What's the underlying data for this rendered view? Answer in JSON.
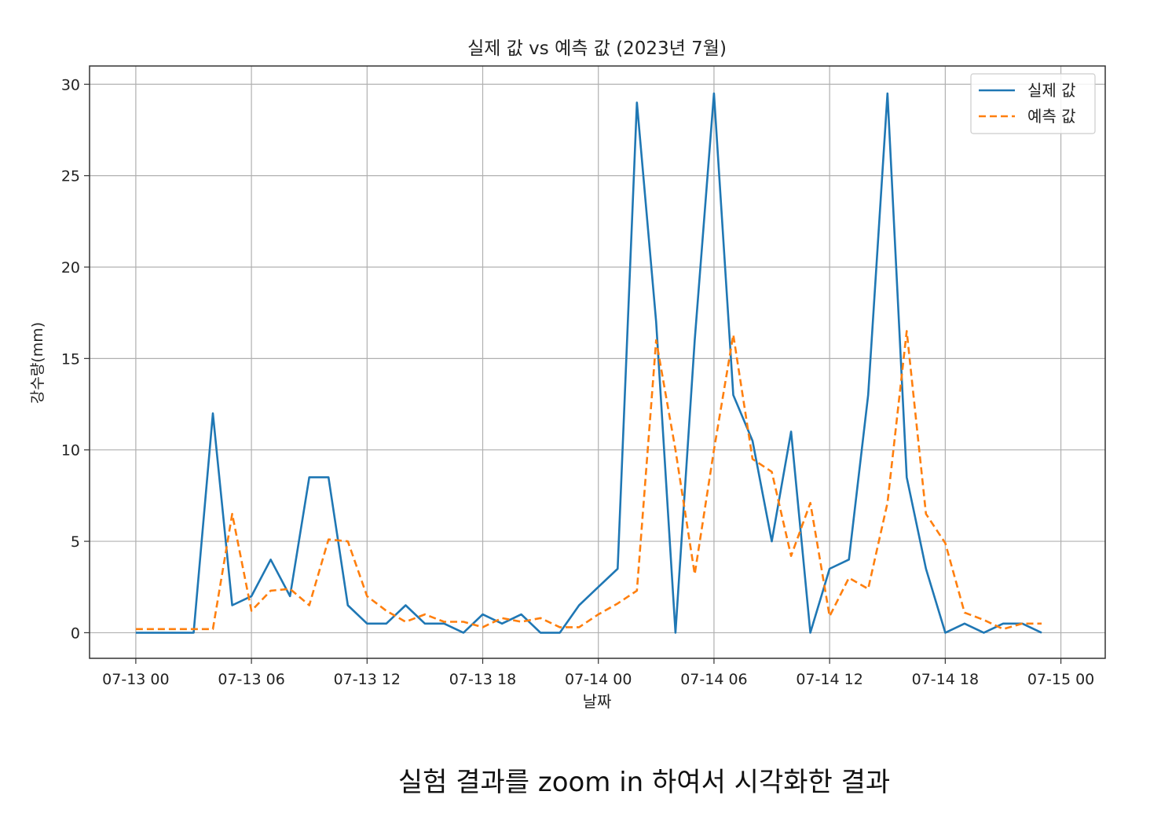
{
  "chart_data": {
    "type": "line",
    "title": "실제 값 vs 예측 값 (2023년 7월)",
    "xlabel": "날짜",
    "ylabel": "강수량(mm)",
    "x_unit": "datetime (2023-07-13 00:00 to 2023-07-15 00:00), 1-hour steps",
    "x_ticks": [
      "07-13 00",
      "07-13 06",
      "07-13 12",
      "07-13 18",
      "07-14 00",
      "07-14 06",
      "07-14 12",
      "07-14 18",
      "07-15 00"
    ],
    "y_ticks": [
      0,
      5,
      10,
      15,
      20,
      25,
      30
    ],
    "ylim": [
      -1.4,
      31
    ],
    "xlim_hours": [
      -2.4,
      50.3
    ],
    "grid": true,
    "legend_position": "top-right",
    "x": [
      "2023-07-13 00:00",
      "2023-07-13 01:00",
      "2023-07-13 02:00",
      "2023-07-13 03:00",
      "2023-07-13 04:00",
      "2023-07-13 05:00",
      "2023-07-13 06:00",
      "2023-07-13 07:00",
      "2023-07-13 08:00",
      "2023-07-13 09:00",
      "2023-07-13 10:00",
      "2023-07-13 11:00",
      "2023-07-13 12:00",
      "2023-07-13 13:00",
      "2023-07-13 14:00",
      "2023-07-13 15:00",
      "2023-07-13 16:00",
      "2023-07-13 17:00",
      "2023-07-13 18:00",
      "2023-07-13 19:00",
      "2023-07-13 20:00",
      "2023-07-13 21:00",
      "2023-07-13 22:00",
      "2023-07-13 23:00",
      "2023-07-14 00:00",
      "2023-07-14 01:00",
      "2023-07-14 02:00",
      "2023-07-14 03:00",
      "2023-07-14 04:00",
      "2023-07-14 05:00",
      "2023-07-14 06:00",
      "2023-07-14 07:00",
      "2023-07-14 08:00",
      "2023-07-14 09:00",
      "2023-07-14 10:00",
      "2023-07-14 11:00",
      "2023-07-14 12:00",
      "2023-07-14 13:00",
      "2023-07-14 14:00",
      "2023-07-14 15:00",
      "2023-07-14 16:00",
      "2023-07-14 17:00",
      "2023-07-14 18:00",
      "2023-07-14 19:00",
      "2023-07-14 20:00",
      "2023-07-14 21:00",
      "2023-07-14 22:00",
      "2023-07-14 23:00"
    ],
    "series": [
      {
        "name": "실제 값",
        "color": "#1f77b4",
        "style": "solid",
        "values": [
          0,
          0,
          0,
          0,
          12,
          1.5,
          2,
          4,
          2,
          8.5,
          8.5,
          1.5,
          0.5,
          0.5,
          1.5,
          0.5,
          0.5,
          0,
          1,
          0.5,
          1,
          0,
          0,
          1.5,
          2.5,
          3.5,
          29,
          17,
          0,
          16,
          29.5,
          13,
          10.5,
          5,
          11,
          0,
          3.5,
          4,
          13,
          29.5,
          8.5,
          3.5,
          0,
          0.5,
          0,
          0.5,
          0.5,
          0
        ]
      },
      {
        "name": "예측 값",
        "color": "#ff7f0e",
        "style": "dashed",
        "values": [
          0.2,
          0.2,
          0.2,
          0.2,
          0.2,
          6.5,
          1.2,
          2.3,
          2.4,
          1.5,
          5.1,
          5.0,
          2,
          1.2,
          0.6,
          1,
          0.6,
          0.6,
          0.3,
          0.8,
          0.6,
          0.8,
          0.3,
          0.3,
          1,
          1.6,
          2.3,
          16,
          10,
          3.2,
          10,
          16.3,
          9.5,
          8.8,
          4.2,
          7.1,
          0.9,
          3,
          2.4,
          7.1,
          16.5,
          6.5,
          4.9,
          1.1,
          0.7,
          0.2,
          0.5,
          0.5
        ]
      }
    ]
  },
  "caption": "실험 결과를 zoom in 하여서 시각화한 결과"
}
